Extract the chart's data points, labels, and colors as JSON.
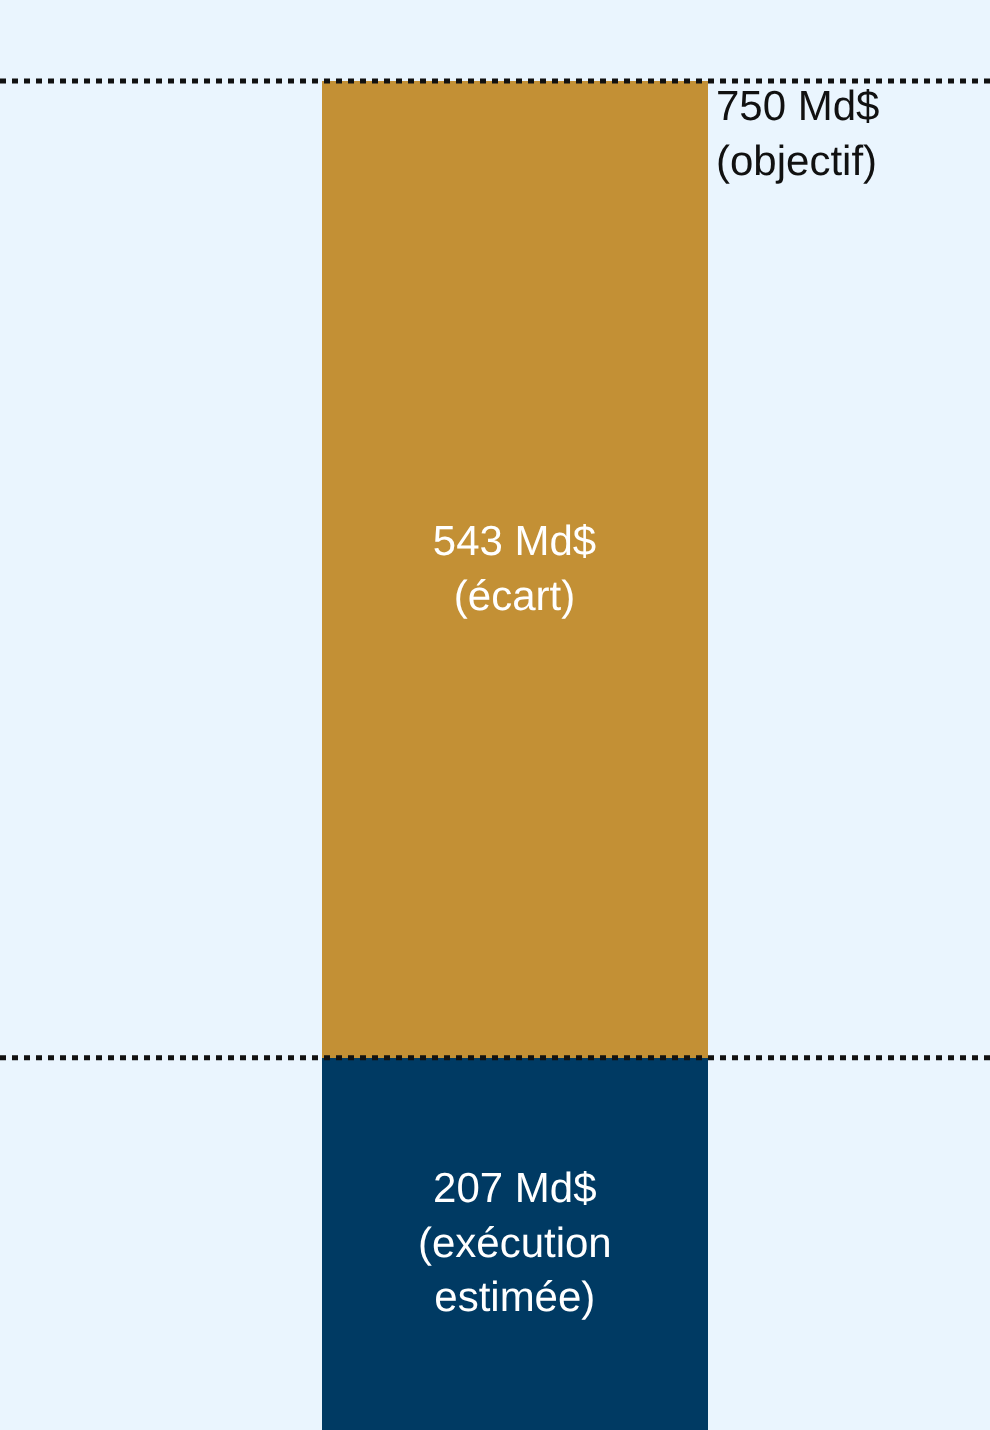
{
  "chart_data": {
    "type": "bar",
    "stacked": true,
    "categories": [
      null
    ],
    "series": [
      {
        "color": "#003a63",
        "values": [
          207
        ],
        "value_labels": [
          "207 Md$\n(exécution\nestimée)"
        ]
      },
      {
        "color": "#c39035",
        "values": [
          543
        ],
        "value_labels": [
          "543 Md$\n(écart)"
        ]
      }
    ],
    "ref_lines": [
      {
        "axis": "y",
        "value": 750,
        "label": "750 Md$\n(objectif)",
        "color": "#111111",
        "line_style": "dotted"
      },
      {
        "axis": "y",
        "value": 207,
        "color": "#111111",
        "line_style": "dotted"
      }
    ],
    "tick_labels": false,
    "grid": false,
    "legend": false
  }
}
